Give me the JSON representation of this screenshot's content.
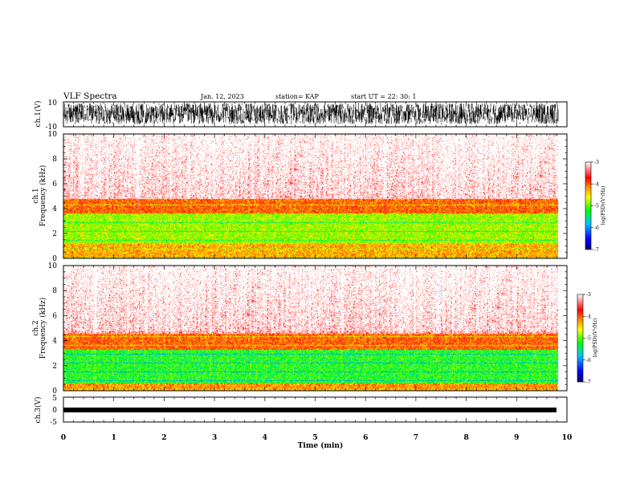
{
  "header": {
    "title": "VLF Spectra",
    "date": "Jan. 12, 2023",
    "station": "station= KAP",
    "start_ut": "start  UT =   22: 30: 1"
  },
  "colors": {
    "waveform": "#000000",
    "spectrogram_scale": [
      "#00007a",
      "#0000ff",
      "#00c8ff",
      "#00ff00",
      "#ffff00",
      "#ff8000",
      "#ff0000",
      "#ffffff"
    ]
  },
  "chart_data": [
    {
      "type": "line",
      "panel": "ch1-waveform",
      "ylabel": "ch.1(V)",
      "ylim": [
        -10,
        10
      ],
      "yticks": [
        "10",
        "-10"
      ],
      "xlim": [
        0,
        10
      ],
      "duration_min": 9.83,
      "amplitude_range": [
        -8,
        9
      ]
    },
    {
      "type": "heatmap",
      "panel": "ch1-spectrogram",
      "ylabel": "ch.1\nFrequency  (kHz)",
      "ylim": [
        0,
        10
      ],
      "yticks": [
        "0",
        "2",
        "4",
        "6",
        "8",
        "10"
      ],
      "xlim": [
        0,
        10
      ],
      "duration_min": 9.83,
      "colorbar": {
        "label": "log(PSD)(V²/Hz)",
        "range": [
          -7,
          -3
        ],
        "ticks": [
          "-3",
          "-4",
          "-5",
          "-6",
          "-7"
        ]
      },
      "bands": [
        {
          "freq_khz": [
            0,
            1.2
          ],
          "level": -4.3
        },
        {
          "freq_khz": [
            1.2,
            3.6
          ],
          "level": -4.8
        },
        {
          "freq_khz": [
            3.6,
            4.8
          ],
          "level": -4.0
        },
        {
          "freq_khz": [
            4.8,
            10
          ],
          "level": -3.2
        }
      ]
    },
    {
      "type": "heatmap",
      "panel": "ch2-spectrogram",
      "ylabel": "ch.2\nFrequency  (kHz)",
      "ylim": [
        0,
        10
      ],
      "yticks": [
        "0",
        "2",
        "4",
        "6",
        "8",
        "10"
      ],
      "xlim": [
        0,
        10
      ],
      "duration_min": 9.83,
      "colorbar": {
        "label": "log(PSD)(V²/Hz)",
        "range": [
          -7,
          -3
        ],
        "ticks": [
          "-3",
          "-4",
          "-5",
          "-6",
          "-7"
        ]
      },
      "bands": [
        {
          "freq_khz": [
            0,
            0.6
          ],
          "level": -4.2
        },
        {
          "freq_khz": [
            0.6,
            3.3
          ],
          "level": -5.2
        },
        {
          "freq_khz": [
            3.3,
            4.6
          ],
          "level": -4.0
        },
        {
          "freq_khz": [
            4.6,
            10
          ],
          "level": -3.2
        }
      ]
    },
    {
      "type": "line",
      "panel": "ch3-waveform",
      "ylabel": "ch.3(V)",
      "ylim": [
        -5,
        5
      ],
      "yticks": [
        "5",
        "0",
        "-5"
      ],
      "xlim": [
        0,
        10
      ],
      "duration_min": 9.83,
      "amplitude_range": [
        -1,
        1
      ]
    }
  ],
  "xaxis": {
    "label": "Time  (min)",
    "ticks": [
      "0",
      "1",
      "2",
      "3",
      "4",
      "5",
      "6",
      "7",
      "8",
      "9",
      "10"
    ]
  }
}
